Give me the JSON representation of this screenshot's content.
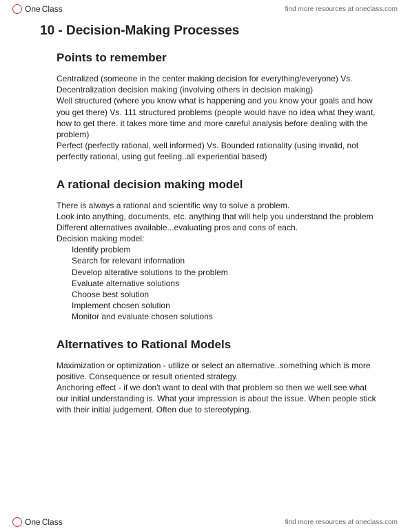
{
  "brand": {
    "part1": "One",
    "part2": "Class"
  },
  "resources_text": "find more resources at oneclass.com",
  "title": "10 - Decision-Making Processes",
  "sections": [
    {
      "heading": "Points to remember",
      "paragraphs": [
        "Centralized (someone in the center making decision for everything/everyone) Vs. Decentralization decision making (involving others in decision making)",
        "Well structured (where you know what is happening and you know your goals and how you get there) Vs. 111 structured problems (people would have no idea what they want, how to get there. it takes more time and more careful analysis before dealing with the problem)",
        "Perfect (perfectly rational, well informed) Vs. Bounded rationality (using invalid, not perfectly rational, using gut feeling..all experiential based)"
      ]
    },
    {
      "heading": "A rational decision making model",
      "paragraphs": [
        "There is always a rational and scientific way to solve a problem.",
        "Look into anything, documents, etc. anything that will help you understand the problem",
        "Different alternatives available...evaluating pros and cons of each.",
        "Decision making model:"
      ],
      "list": [
        "Identify problem",
        "Search for relevant information",
        "Develop alterative solutions to the problem",
        "Evaluate alternative solutions",
        "Choose best solution",
        "Implement chosen solution",
        "Monitor and evaluate chosen solutions"
      ]
    },
    {
      "heading": "Alternatives to Rational Models",
      "paragraphs": [
        "Maximization or optimization - utilize or select an alternative..something which is more positive. Consequence or result oriented strategy.",
        "Anchoring effect - if we don't want to deal with that problem so then we well see what our initial understanding is. What your impression is about the issue. When people stick with their initial judgement. Often due to stereotyping."
      ]
    }
  ]
}
